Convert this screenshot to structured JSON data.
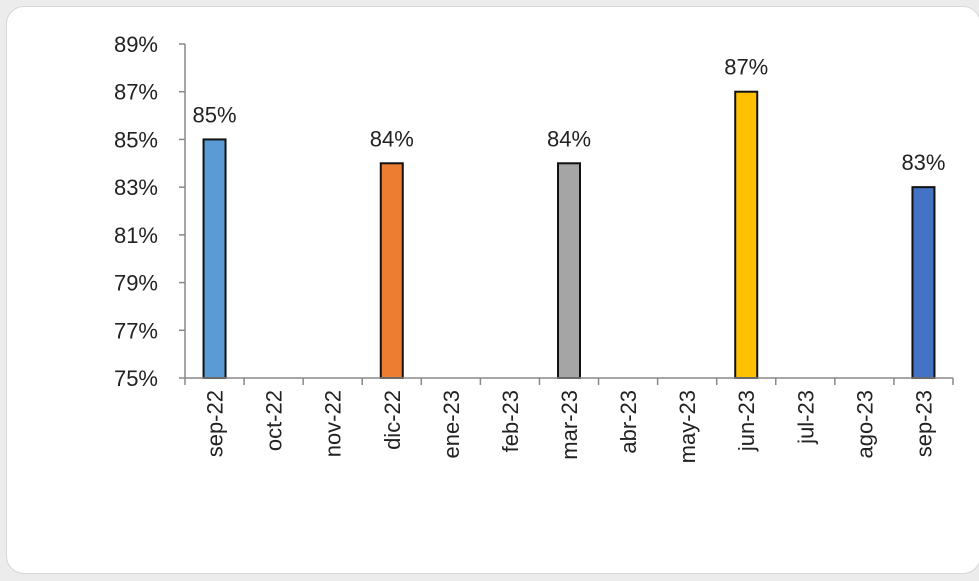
{
  "chart_data": {
    "type": "bar",
    "title": "",
    "xlabel": "",
    "ylabel": "",
    "categories": [
      "sep-22",
      "oct-22",
      "nov-22",
      "dic-22",
      "ene-23",
      "feb-23",
      "mar-23",
      "abr-23",
      "may-23",
      "jun-23",
      "jul-23",
      "ago-23",
      "sep-23"
    ],
    "values": [
      0.85,
      null,
      null,
      0.84,
      null,
      null,
      0.84,
      null,
      null,
      0.87,
      null,
      null,
      0.83
    ],
    "data_labels": [
      "85%",
      "",
      "",
      "84%",
      "",
      "",
      "84%",
      "",
      "",
      "87%",
      "",
      "",
      "83%"
    ],
    "bar_colors": [
      "#5b9bd5",
      null,
      null,
      "#ed7d31",
      null,
      null,
      "#a5a5a5",
      null,
      null,
      "#ffc000",
      null,
      null,
      "#4472c4"
    ],
    "ylim": [
      0.75,
      0.89
    ],
    "yticks": [
      "75%",
      "77%",
      "79%",
      "81%",
      "83%",
      "85%",
      "87%",
      "89%"
    ],
    "ytick_values": [
      0.75,
      0.77,
      0.79,
      0.81,
      0.83,
      0.85,
      0.87,
      0.89
    ],
    "grid": false,
    "legend": "none"
  }
}
